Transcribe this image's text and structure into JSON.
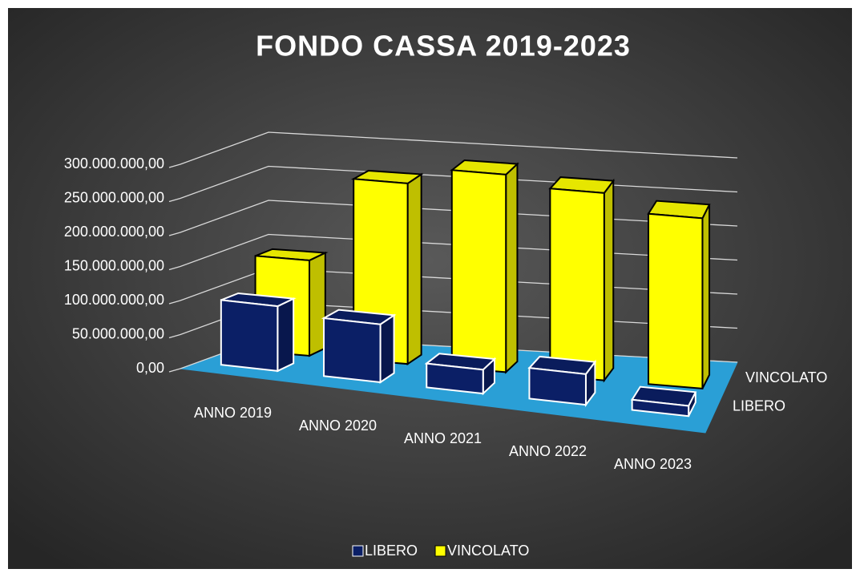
{
  "chart_data": {
    "type": "bar3d",
    "title": "FONDO CASSA 2019-2023",
    "categories": [
      "ANNO 2019",
      "ANNO 2020",
      "ANNO 2021",
      "ANNO 2022",
      "ANNO 2023"
    ],
    "series": [
      {
        "name": "LIBERO",
        "color": "#0b1f66",
        "values": [
          95000000,
          85000000,
          35000000,
          45000000,
          15000000
        ]
      },
      {
        "name": "VINCOLATO",
        "color": "#ffff00",
        "values": [
          140000000,
          265000000,
          290000000,
          275000000,
          250000000
        ]
      }
    ],
    "ylim": [
      0,
      300000000
    ],
    "yticks": [
      {
        "value": 0,
        "label": "0,00"
      },
      {
        "value": 50000000,
        "label": "50.000.000,00"
      },
      {
        "value": 100000000,
        "label": "100.000.000,00"
      },
      {
        "value": 150000000,
        "label": "150.000.000,00"
      },
      {
        "value": 200000000,
        "label": "200.000.000,00"
      },
      {
        "value": 250000000,
        "label": "250.000.000,00"
      },
      {
        "value": 300000000,
        "label": "300.000.000,00"
      }
    ],
    "grid": true,
    "legend": "bottom"
  }
}
